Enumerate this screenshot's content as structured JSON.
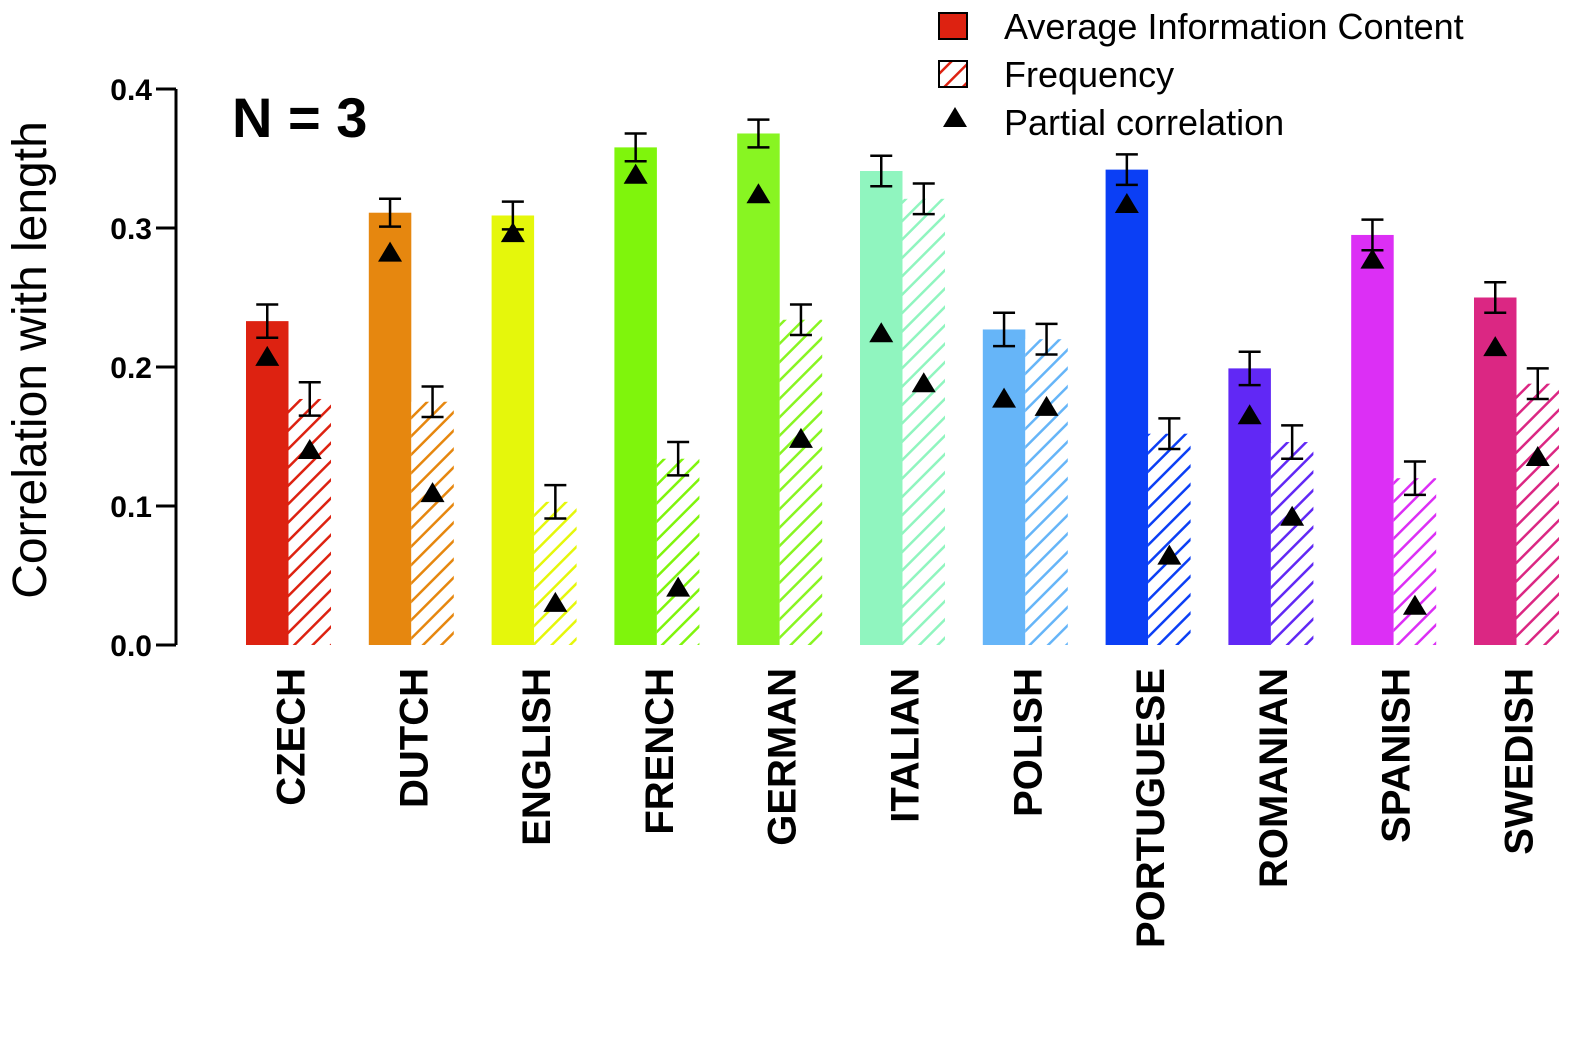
{
  "chart_data": {
    "type": "bar",
    "ylabel": "Correlation with length",
    "annotation": "N = 3",
    "ylim": [
      0,
      0.4
    ],
    "yticks": [
      "0.0",
      "0.1",
      "0.2",
      "0.3",
      "0.4"
    ],
    "ytick_values": [
      0,
      0.1,
      0.2,
      0.3,
      0.4
    ],
    "categories": [
      "CZECH",
      "DUTCH",
      "ENGLISH",
      "FRENCH",
      "GERMAN",
      "ITALIAN",
      "POLISH",
      "PORTUGUESE",
      "ROMANIAN",
      "SPANISH",
      "SWEDISH"
    ],
    "colors": [
      "#dd2211",
      "#e6870f",
      "#e5f70b",
      "#7ff50c",
      "#88f522",
      "#90f5bf",
      "#66b5f8",
      "#0b3ff5",
      "#6128f5",
      "#dc2ff5",
      "#db2783"
    ],
    "series": [
      {
        "name": "Average Information Content",
        "style": "solid",
        "values": [
          0.233,
          0.311,
          0.309,
          0.358,
          0.368,
          0.341,
          0.227,
          0.342,
          0.199,
          0.295,
          0.25
        ],
        "error": [
          0.012,
          0.01,
          0.01,
          0.01,
          0.01,
          0.011,
          0.012,
          0.011,
          0.012,
          0.011,
          0.011
        ],
        "partial_correlation": [
          0.208,
          0.283,
          0.297,
          0.339,
          0.325,
          0.225,
          0.178,
          0.318,
          0.166,
          0.278,
          0.215
        ]
      },
      {
        "name": "Frequency",
        "style": "hatched",
        "values": [
          0.177,
          0.175,
          0.103,
          0.134,
          0.234,
          0.321,
          0.22,
          0.152,
          0.146,
          0.12,
          0.188
        ],
        "error": [
          0.012,
          0.011,
          0.012,
          0.012,
          0.011,
          0.011,
          0.011,
          0.011,
          0.012,
          0.012,
          0.011
        ],
        "partial_correlation": [
          0.141,
          0.11,
          0.031,
          0.042,
          0.149,
          0.189,
          0.172,
          0.065,
          0.093,
          0.029,
          0.136
        ]
      }
    ],
    "legend": {
      "position": "top-right",
      "entries": [
        "Average Information Content",
        "Frequency",
        "Partial correlation"
      ]
    }
  }
}
